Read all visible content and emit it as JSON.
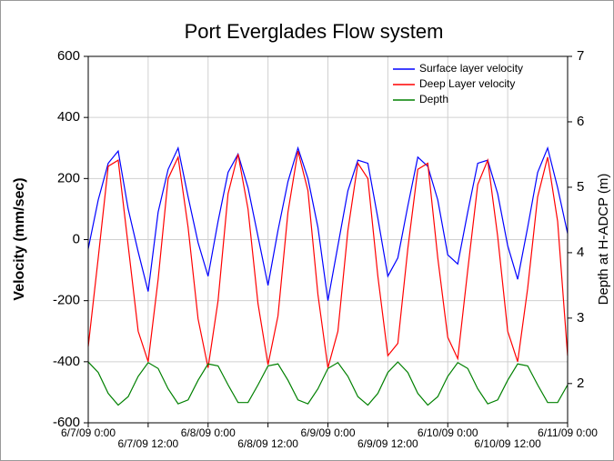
{
  "chart_data": {
    "type": "line",
    "title": "Port Everglades Flow system",
    "ylabel": "Velocity (mm/sec)",
    "y2label": "Depth at H-ADCP (m)",
    "x": [
      "2009-06-07T00:00",
      "2009-06-07T02:00",
      "2009-06-07T04:00",
      "2009-06-07T06:00",
      "2009-06-07T08:00",
      "2009-06-07T10:00",
      "2009-06-07T12:00",
      "2009-06-07T14:00",
      "2009-06-07T16:00",
      "2009-06-07T18:00",
      "2009-06-07T20:00",
      "2009-06-07T22:00",
      "2009-06-08T00:00",
      "2009-06-08T02:00",
      "2009-06-08T04:00",
      "2009-06-08T06:00",
      "2009-06-08T08:00",
      "2009-06-08T10:00",
      "2009-06-08T12:00",
      "2009-06-08T14:00",
      "2009-06-08T16:00",
      "2009-06-08T18:00",
      "2009-06-08T20:00",
      "2009-06-08T22:00",
      "2009-06-09T00:00",
      "2009-06-09T02:00",
      "2009-06-09T04:00",
      "2009-06-09T06:00",
      "2009-06-09T08:00",
      "2009-06-09T10:00",
      "2009-06-09T12:00",
      "2009-06-09T14:00",
      "2009-06-09T16:00",
      "2009-06-09T18:00",
      "2009-06-09T20:00",
      "2009-06-09T22:00",
      "2009-06-10T00:00",
      "2009-06-10T02:00",
      "2009-06-10T04:00",
      "2009-06-10T06:00",
      "2009-06-10T08:00",
      "2009-06-10T10:00",
      "2009-06-10T12:00",
      "2009-06-10T14:00",
      "2009-06-10T16:00",
      "2009-06-10T18:00",
      "2009-06-10T20:00",
      "2009-06-10T22:00",
      "2009-06-11T00:00"
    ],
    "series": [
      {
        "name": "Surface layer velocity",
        "color": "#0000ff",
        "values": [
          -30,
          130,
          250,
          290,
          100,
          -40,
          -170,
          90,
          230,
          300,
          140,
          -10,
          -120,
          60,
          220,
          280,
          170,
          10,
          -150,
          30,
          190,
          300,
          200,
          40,
          -200,
          -20,
          160,
          260,
          250,
          70,
          -120,
          -60,
          110,
          270,
          240,
          130,
          -50,
          -80,
          90,
          250,
          260,
          150,
          -20,
          -130,
          40,
          220,
          300,
          170,
          20
        ]
      },
      {
        "name": "Deep Layer velocity",
        "color": "#ff0000",
        "values": [
          -350,
          -60,
          240,
          260,
          -20,
          -300,
          -400,
          -130,
          200,
          270,
          40,
          -260,
          -420,
          -200,
          150,
          280,
          100,
          -210,
          -410,
          -250,
          90,
          290,
          160,
          -180,
          -420,
          -300,
          30,
          250,
          200,
          -120,
          -380,
          -340,
          -30,
          230,
          250,
          -60,
          -320,
          -390,
          -100,
          180,
          260,
          10,
          -300,
          -400,
          -160,
          140,
          270,
          60,
          -380
        ]
      },
      {
        "name": "Depth",
        "color": "#008000",
        "axis": "y2",
        "values": [
          2.33,
          2.17,
          1.85,
          1.67,
          1.8,
          2.11,
          2.32,
          2.23,
          1.92,
          1.69,
          1.75,
          2.05,
          2.3,
          2.27,
          1.98,
          1.71,
          1.71,
          1.98,
          2.27,
          2.3,
          2.05,
          1.75,
          1.69,
          1.92,
          2.23,
          2.32,
          2.11,
          1.8,
          1.67,
          1.85,
          2.17,
          2.33,
          2.17,
          1.85,
          1.67,
          1.8,
          2.11,
          2.32,
          2.23,
          1.92,
          1.69,
          1.75,
          2.05,
          2.3,
          2.27,
          1.98,
          1.71,
          1.71,
          1.98
        ]
      }
    ],
    "xlim": [
      "2009-06-07T00:00",
      "2009-06-11T00:00"
    ],
    "xticks": [
      {
        "value": "2009-06-07T00:00",
        "label": "6/7/09 0:00"
      },
      {
        "value": "2009-06-07T12:00",
        "label": "6/7/09 12:00"
      },
      {
        "value": "2009-06-08T00:00",
        "label": "6/8/09 0:00"
      },
      {
        "value": "2009-06-08T12:00",
        "label": "6/8/09 12:00"
      },
      {
        "value": "2009-06-09T00:00",
        "label": "6/9/09 0:00"
      },
      {
        "value": "2009-06-09T12:00",
        "label": "6/9/09 12:00"
      },
      {
        "value": "2009-06-10T00:00",
        "label": "6/10/09 0:00"
      },
      {
        "value": "2009-06-10T12:00",
        "label": "6/10/09 12:00"
      },
      {
        "value": "2009-06-11T00:00",
        "label": "6/11/09 0:00"
      }
    ],
    "ylim": [
      -600,
      600
    ],
    "yticks": [
      -600,
      -400,
      -200,
      0,
      200,
      400,
      600
    ],
    "y2lim": [
      1.4,
      7
    ],
    "y2ticks": [
      2,
      3,
      4,
      5,
      6,
      7
    ],
    "grid": true,
    "legend": "top-right"
  }
}
